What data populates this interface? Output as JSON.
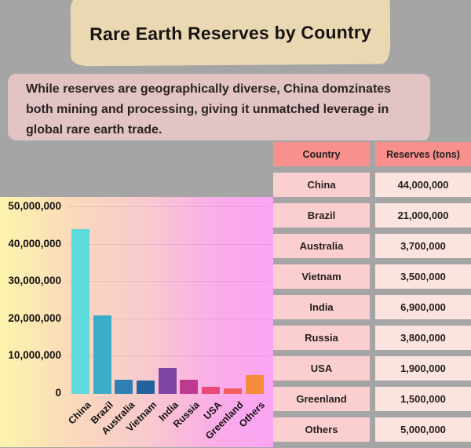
{
  "title": "Rare Earth Reserves by Country",
  "subtitle": {
    "lines": [
      "While reserves are geographically diverse, China domzinates",
      "both mining and processing, giving it unmatched leverage in",
      "global rare earth trade."
    ]
  },
  "chart_data": {
    "type": "bar",
    "categories": [
      "China",
      "Brazil",
      "Australia",
      "Vietnam",
      "India",
      "Russia",
      "USA",
      "Greenland",
      "Others"
    ],
    "values": [
      44000000,
      21000000,
      3700000,
      3500000,
      6900000,
      3800000,
      1900000,
      1500000,
      5000000
    ],
    "bar_colors": [
      "#5EDADD",
      "#3BADCB",
      "#2E7FB4",
      "#24629E",
      "#7F44A6",
      "#BD3A90",
      "#E9487C",
      "#F25E5E",
      "#F68B3B"
    ],
    "title": "",
    "xlabel": "",
    "ylabel": "",
    "ylim": [
      0,
      50000000
    ],
    "ytick_labels": [
      "50,000,000",
      "40,000,000",
      "30,000,000",
      "20,000,000",
      "10,000,000",
      "0"
    ],
    "grid": true,
    "legend": false,
    "background_gradient": [
      "#FCF4AC",
      "#F9CBCD",
      "#FBA5F5"
    ]
  },
  "table": {
    "headers": [
      "Country",
      "Reserves (tons)"
    ],
    "rows": [
      {
        "country": "China",
        "reserves": "44,000,000"
      },
      {
        "country": "Brazil",
        "reserves": "21,000,000"
      },
      {
        "country": "Australia",
        "reserves": "3,700,000"
      },
      {
        "country": "Vietnam",
        "reserves": "3,500,000"
      },
      {
        "country": "India",
        "reserves": "6,900,000"
      },
      {
        "country": "Russia",
        "reserves": "3,800,000"
      },
      {
        "country": "USA",
        "reserves": "1,900,000"
      },
      {
        "country": "Greenland",
        "reserves": "1,500,000"
      },
      {
        "country": "Others",
        "reserves": "5,000,000"
      }
    ]
  },
  "colors": {
    "page_background": "#A5A5A5",
    "title_brush": "#EAD8B3",
    "subtitle_brush": "#E2C4C4",
    "table_header": "#F8908E",
    "table_country_cell": "#FBCFCF",
    "table_value_cell": "#FBE3E0"
  }
}
